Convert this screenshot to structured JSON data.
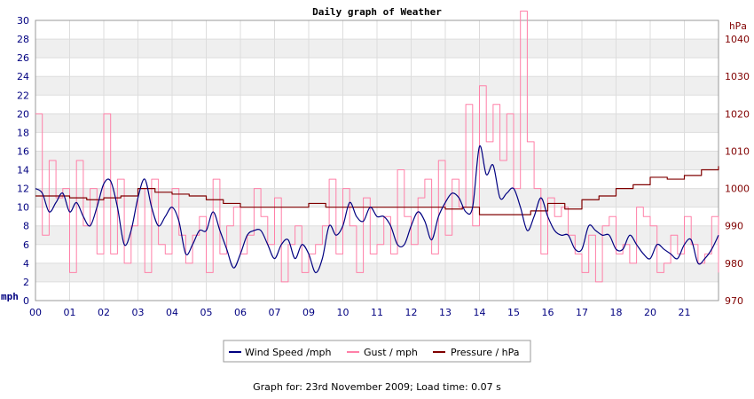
{
  "chart_data": {
    "type": "line",
    "title": "Daily graph of Weather",
    "x_tick_labels": [
      "00",
      "01",
      "02",
      "03",
      "04",
      "05",
      "06",
      "07",
      "09",
      "10",
      "11",
      "12",
      "13",
      "14",
      "15",
      "16",
      "17",
      "18",
      "20",
      "21"
    ],
    "x_range": [
      0,
      20
    ],
    "y_left": {
      "unit_label": "mph",
      "range": [
        0,
        30
      ],
      "ticks": [
        0,
        2,
        4,
        6,
        8,
        10,
        12,
        14,
        16,
        18,
        20,
        22,
        24,
        26,
        28,
        30
      ]
    },
    "y_right": {
      "unit_label": "hPa",
      "range": [
        970,
        1045
      ],
      "ticks": [
        970,
        980,
        990,
        1000,
        1010,
        1020,
        1030,
        1040
      ]
    },
    "grid": true,
    "legend_position": "bottom-center",
    "series": [
      {
        "name": "Wind Speed /mph",
        "axis": "left",
        "color": "#000080",
        "x": [
          0,
          0.2,
          0.4,
          0.6,
          0.8,
          1.0,
          1.2,
          1.4,
          1.6,
          1.8,
          2.0,
          2.2,
          2.4,
          2.6,
          2.8,
          3.0,
          3.2,
          3.4,
          3.6,
          3.8,
          4.0,
          4.2,
          4.4,
          4.6,
          4.8,
          5.0,
          5.2,
          5.4,
          5.6,
          5.8,
          6.0,
          6.2,
          6.4,
          6.6,
          6.8,
          7.0,
          7.2,
          7.4,
          7.6,
          7.8,
          8.0,
          8.2,
          8.4,
          8.6,
          8.8,
          9.0,
          9.2,
          9.4,
          9.6,
          9.8,
          10.0,
          10.2,
          10.4,
          10.6,
          10.8,
          11.0,
          11.2,
          11.4,
          11.6,
          11.8,
          12.0,
          12.2,
          12.4,
          12.6,
          12.8,
          13.0,
          13.2,
          13.4,
          13.6,
          13.8,
          14.0,
          14.2,
          14.4,
          14.6,
          14.8,
          15.0,
          15.2,
          15.4,
          15.6,
          15.8,
          16.0,
          16.2,
          16.4,
          16.6,
          16.8,
          17.0,
          17.2,
          17.4,
          17.6,
          17.8,
          18.0,
          18.2,
          18.4,
          18.6,
          18.8,
          19.0,
          19.2,
          19.4,
          19.6,
          19.8,
          20.0
        ],
        "values": [
          12,
          11.5,
          9.5,
          10.5,
          11.5,
          9.5,
          10.5,
          9,
          8,
          10,
          12.5,
          12.8,
          10,
          6,
          7.5,
          11,
          13,
          10,
          8,
          9,
          10,
          8.5,
          5,
          6,
          7.5,
          7.5,
          9.5,
          7.5,
          5.5,
          3.5,
          5,
          7,
          7.5,
          7.5,
          6,
          4.5,
          6,
          6.5,
          4.5,
          6,
          5,
          3,
          4.5,
          8,
          7,
          8,
          10.5,
          9,
          8.5,
          10,
          9,
          9,
          8,
          6,
          6,
          8,
          9.5,
          8.5,
          6.5,
          9,
          10.5,
          11.5,
          11,
          9.5,
          10,
          16.5,
          13.5,
          14.5,
          11,
          11.5,
          12,
          10,
          7.5,
          9,
          11,
          9,
          7.5,
          7,
          7,
          5.5,
          5.5,
          8,
          7.5,
          7,
          7,
          5.5,
          5.5,
          7,
          6,
          5,
          4.5,
          6,
          5.5,
          5,
          4.5,
          6,
          6.5,
          4,
          4.5,
          5.5,
          7
        ]
      },
      {
        "name": "Gust / mph",
        "axis": "left",
        "color": "#ff80a8",
        "x": [
          0,
          0.2,
          0.4,
          0.6,
          0.8,
          1.0,
          1.2,
          1.4,
          1.6,
          1.8,
          2.0,
          2.2,
          2.4,
          2.6,
          2.8,
          3.0,
          3.2,
          3.4,
          3.6,
          3.8,
          4.0,
          4.2,
          4.4,
          4.6,
          4.8,
          5.0,
          5.2,
          5.4,
          5.6,
          5.8,
          6.0,
          6.2,
          6.4,
          6.6,
          6.8,
          7.0,
          7.2,
          7.4,
          7.6,
          7.8,
          8.0,
          8.2,
          8.4,
          8.6,
          8.8,
          9.0,
          9.2,
          9.4,
          9.6,
          9.8,
          10.0,
          10.2,
          10.4,
          10.6,
          10.8,
          11.0,
          11.2,
          11.4,
          11.6,
          11.8,
          12.0,
          12.2,
          12.4,
          12.6,
          12.8,
          13.0,
          13.2,
          13.4,
          13.6,
          13.8,
          14.0,
          14.2,
          14.4,
          14.6,
          14.8,
          15.0,
          15.2,
          15.4,
          15.6,
          15.8,
          16.0,
          16.2,
          16.4,
          16.6,
          16.8,
          17.0,
          17.2,
          17.4,
          17.6,
          17.8,
          18.0,
          18.2,
          18.4,
          18.6,
          18.8,
          19.0,
          19.2,
          19.4,
          19.6,
          19.8,
          20.0
        ],
        "values": [
          20,
          7,
          15,
          11,
          12,
          3,
          15,
          8,
          12,
          5,
          20,
          5,
          13,
          4,
          8,
          12,
          3,
          13,
          6,
          5,
          12,
          7,
          4,
          7,
          9,
          3,
          13,
          5,
          8,
          10,
          5,
          7,
          12,
          9,
          6,
          11,
          2,
          6,
          8,
          3,
          5,
          6,
          8,
          13,
          5,
          12,
          8,
          3,
          11,
          5,
          6,
          9,
          5,
          14,
          9,
          6,
          11,
          13,
          5,
          15,
          7,
          13,
          10,
          21,
          8,
          23,
          17,
          21,
          15,
          20,
          12,
          31,
          17,
          12,
          5,
          11,
          9,
          10,
          7,
          5,
          3,
          7,
          2,
          8,
          9,
          5,
          6,
          4,
          10,
          9,
          8,
          3,
          4,
          7,
          5,
          9,
          6,
          4,
          5,
          9,
          3
        ]
      },
      {
        "name": "Pressure / hPa",
        "axis": "right",
        "color": "#800000",
        "x": [
          0,
          0.5,
          1.0,
          1.5,
          2.0,
          2.5,
          3.0,
          3.5,
          4.0,
          4.5,
          5.0,
          5.5,
          6.0,
          6.5,
          7.0,
          7.5,
          8.0,
          8.5,
          9.0,
          9.5,
          10.0,
          10.5,
          11.0,
          11.5,
          12.0,
          12.5,
          13.0,
          13.5,
          14.0,
          14.5,
          15.0,
          15.5,
          16.0,
          16.5,
          17.0,
          17.5,
          18.0,
          18.5,
          19.0,
          19.5,
          20.0
        ],
        "values": [
          998,
          998,
          997.5,
          997,
          997.5,
          998,
          1000,
          999,
          998.5,
          998,
          997,
          996,
          995,
          995,
          995,
          995,
          996,
          995,
          995,
          995,
          995,
          995,
          995,
          995,
          994.5,
          995,
          993,
          993,
          993,
          994,
          996,
          994.5,
          997,
          998,
          1000,
          1001,
          1003,
          1002.5,
          1003.5,
          1005,
          1006
        ]
      }
    ]
  },
  "legend": [
    {
      "label": "Wind Speed /mph",
      "color": "#000080"
    },
    {
      "label": "Gust / mph",
      "color": "#ff80a8"
    },
    {
      "label": "Pressure / hPa",
      "color": "#800000"
    }
  ],
  "footer": "Graph for: 23rd November 2009; Load time: 0.07 s"
}
